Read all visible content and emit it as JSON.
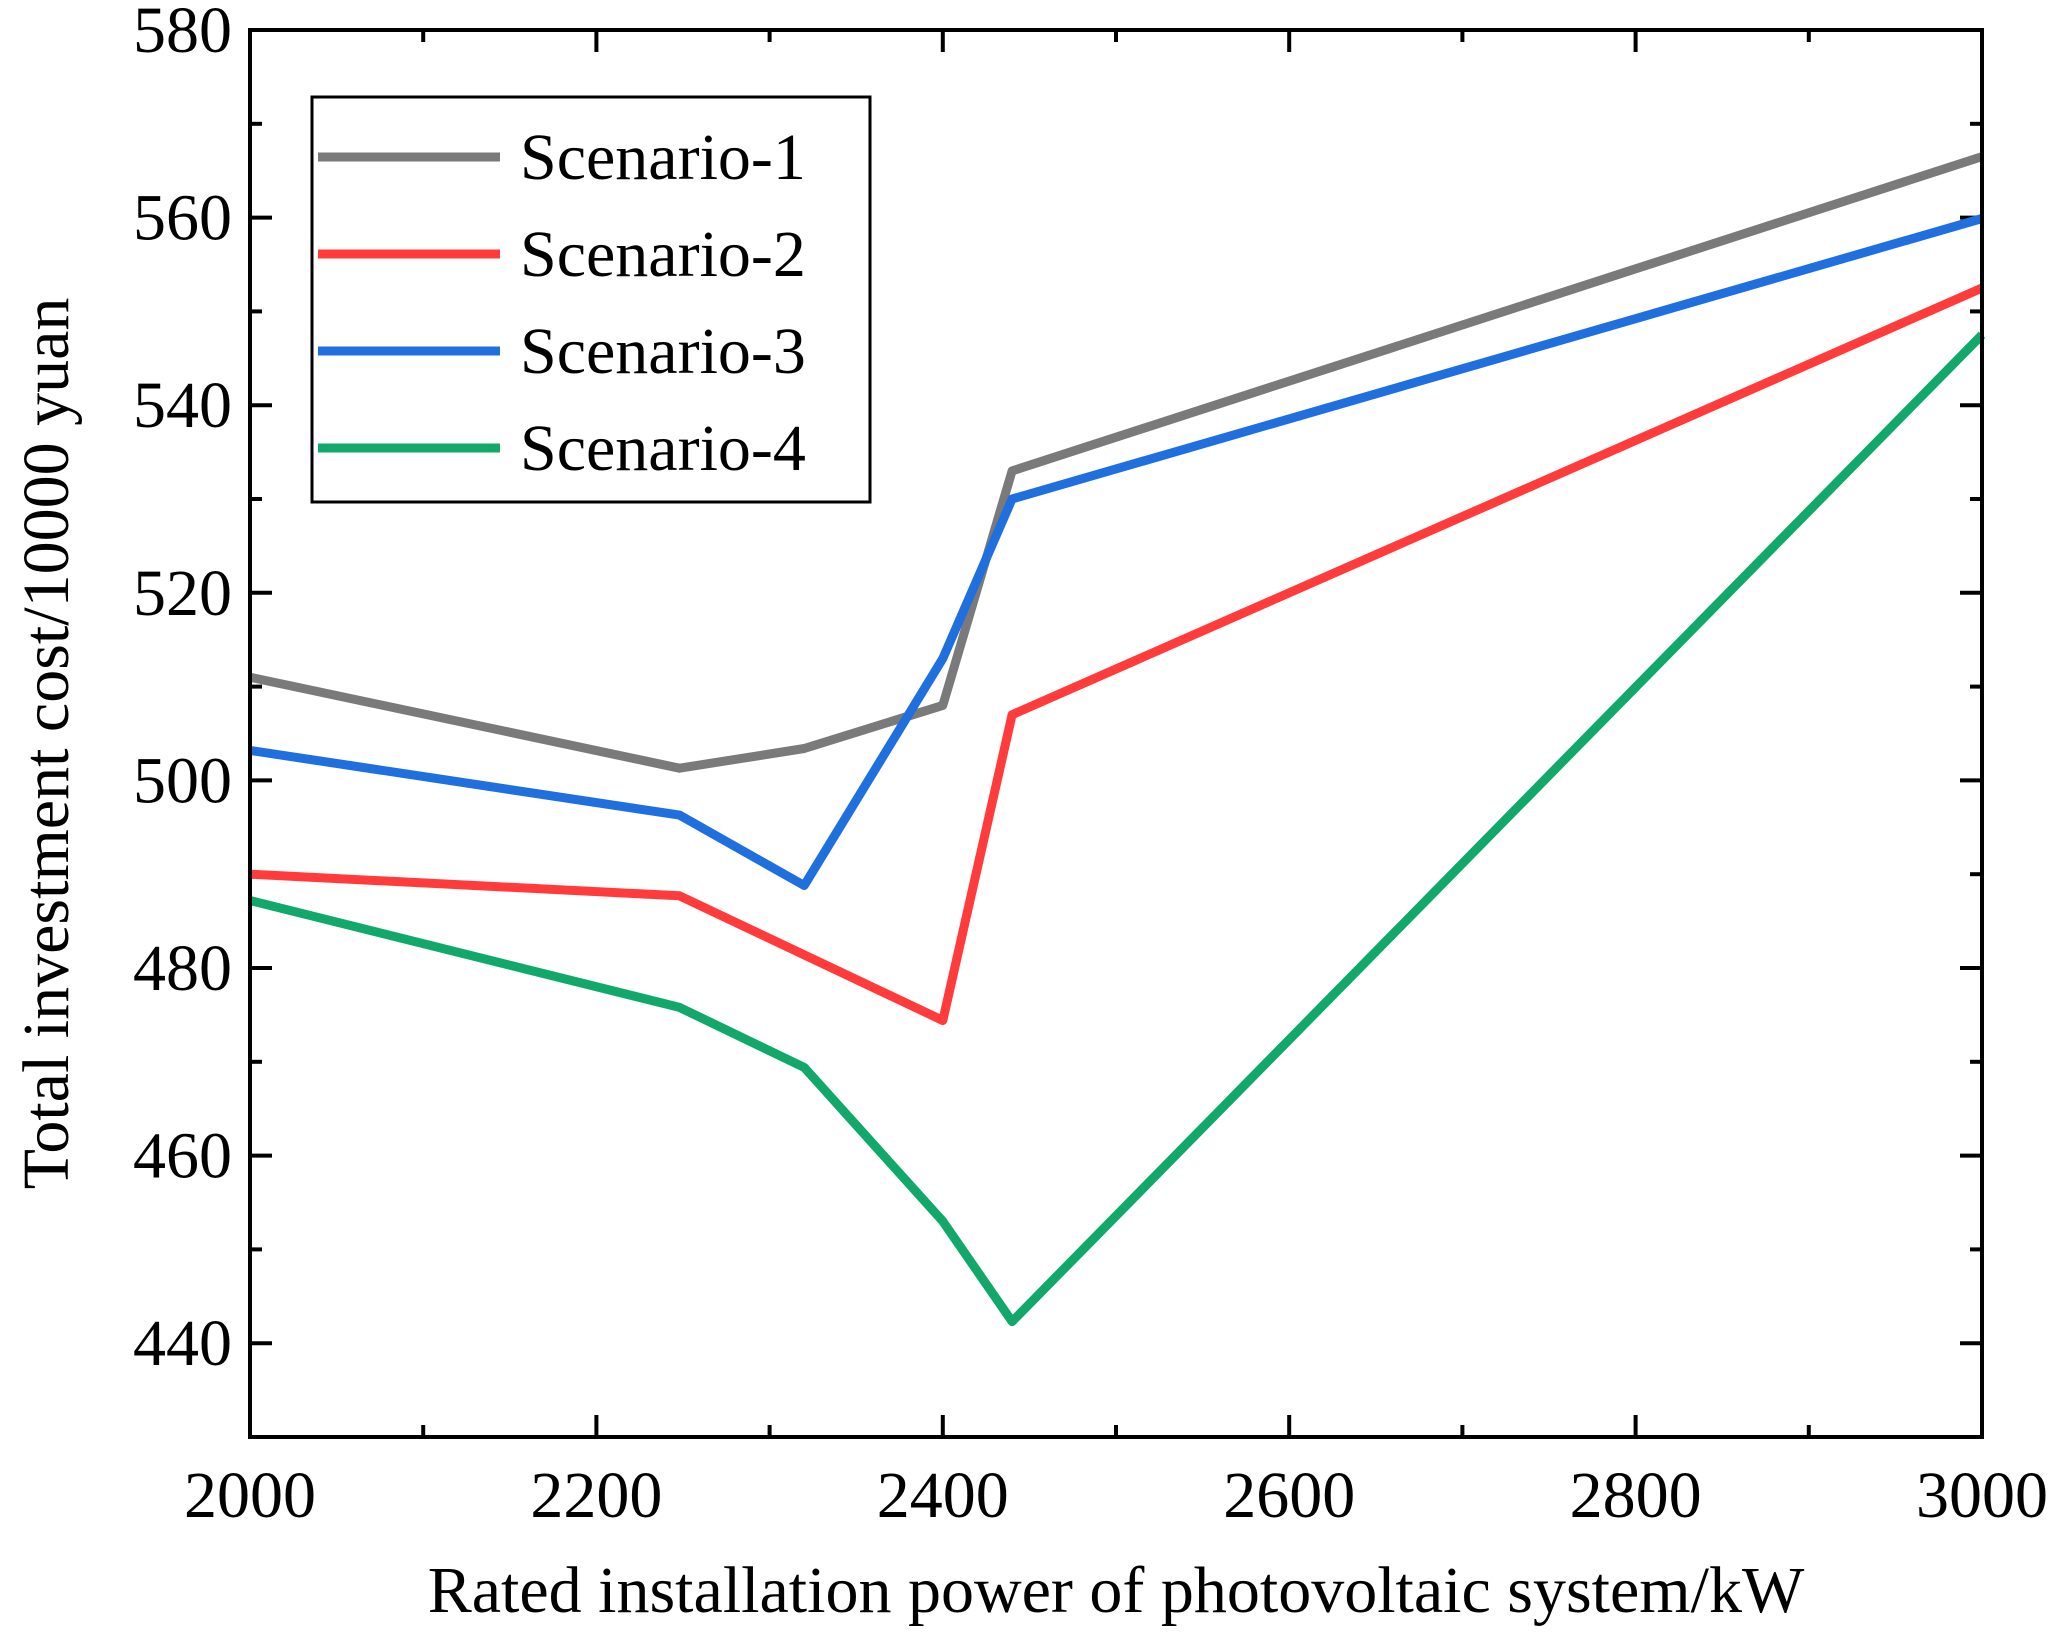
{
  "chart_data": {
    "type": "line",
    "title": "",
    "xlabel": "Rated installation power of photovoltaic system/kW",
    "ylabel": "Total investment cost/10000 yuan",
    "xlim": [
      2000,
      3000
    ],
    "ylim": [
      430,
      580
    ],
    "x_ticks": [
      2000,
      2200,
      2400,
      2600,
      2800,
      3000
    ],
    "x_minor_ticks": [
      2100,
      2300,
      2500,
      2700,
      2900
    ],
    "y_ticks": [
      440,
      460,
      480,
      500,
      520,
      540,
      560,
      580
    ],
    "y_minor_ticks": [
      450,
      470,
      490,
      510,
      530,
      550,
      570
    ],
    "grid": false,
    "legend_position": "top-left",
    "series": [
      {
        "name": "Scenario-1",
        "color": "#7a7a7a",
        "x": [
          2000,
          2248,
          2320,
          2400,
          2440,
          3000
        ],
        "y": [
          511,
          501.3,
          503.4,
          508,
          533,
          566.5
        ]
      },
      {
        "name": "Scenario-2",
        "color": "#ff3b3b",
        "x": [
          2000,
          2248,
          2400,
          2440,
          3000
        ],
        "y": [
          490,
          487.7,
          474.4,
          507,
          552.5
        ]
      },
      {
        "name": "Scenario-3",
        "color": "#1f6fde",
        "x": [
          2000,
          2248,
          2320,
          2400,
          2440,
          3000
        ],
        "y": [
          503.2,
          496.3,
          488.8,
          513,
          530,
          559.9
        ]
      },
      {
        "name": "Scenario-4",
        "color": "#12a86a",
        "x": [
          2000,
          2248,
          2320,
          2400,
          2440,
          3000
        ],
        "y": [
          487.2,
          475.8,
          469.4,
          453,
          442.3,
          547.5
        ]
      }
    ]
  }
}
